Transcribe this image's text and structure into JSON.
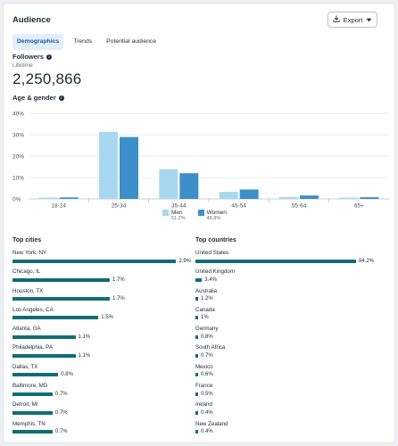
{
  "header": {
    "title": "Audience",
    "export_label": "Export"
  },
  "tabs": [
    {
      "label": "Demographics",
      "active": true
    },
    {
      "label": "Trends",
      "active": false
    },
    {
      "label": "Potential audience",
      "active": false
    }
  ],
  "followers": {
    "label": "Followers",
    "period": "Lifetime",
    "count": "2,250,866"
  },
  "age_gender": {
    "label": "Age & gender"
  },
  "chart_data": {
    "type": "bar",
    "categories": [
      "18-24",
      "25-34",
      "35-44",
      "45-54",
      "55-64",
      "65+"
    ],
    "series": [
      {
        "name": "Men",
        "values": [
          0.6,
          31.3,
          13.9,
          3.3,
          0.8,
          0.6
        ],
        "color": "#a8d8f0"
      },
      {
        "name": "Women",
        "values": [
          0.7,
          28.9,
          12.0,
          4.4,
          1.6,
          0.8
        ],
        "color": "#3d8fc9"
      }
    ],
    "yticks": [
      "0%",
      "10%",
      "20%",
      "30%",
      "40%"
    ],
    "ylim": [
      0,
      40
    ],
    "legend_placement": "bottom-center",
    "grid": true
  },
  "legend": [
    {
      "name": "Men",
      "pct": "51.2%",
      "color": "#a8d8f0"
    },
    {
      "name": "Women",
      "pct": "48.8%",
      "color": "#3d8fc9"
    }
  ],
  "top_cities": {
    "title": "Top cities",
    "items": [
      {
        "name": "New York, NY",
        "value": "2.9%",
        "pct": 2.9
      },
      {
        "name": "Chicago, IL",
        "value": "1.7%",
        "pct": 1.7
      },
      {
        "name": "Houston, TX",
        "value": "1.7%",
        "pct": 1.7
      },
      {
        "name": "Los Angeles, CA",
        "value": "1.5%",
        "pct": 1.5
      },
      {
        "name": "Atlanta, GA",
        "value": "1.1%",
        "pct": 1.1
      },
      {
        "name": "Philadelphia, PA",
        "value": "1.1%",
        "pct": 1.1
      },
      {
        "name": "Dallas, TX",
        "value": "0.8%",
        "pct": 0.8
      },
      {
        "name": "Baltimore, MD",
        "value": "0.7%",
        "pct": 0.7
      },
      {
        "name": "Detroit, MI",
        "value": "0.7%",
        "pct": 0.7
      },
      {
        "name": "Memphis, TN",
        "value": "0.7%",
        "pct": 0.7
      }
    ]
  },
  "top_countries": {
    "title": "Top countries",
    "items": [
      {
        "name": "United States",
        "value": "84.2%",
        "pct": 84.2
      },
      {
        "name": "United Kingdom",
        "value": "3.4%",
        "pct": 3.4
      },
      {
        "name": "Australia",
        "value": "1.2%",
        "pct": 1.2
      },
      {
        "name": "Canada",
        "value": "1%",
        "pct": 1.0
      },
      {
        "name": "Germany",
        "value": "0.8%",
        "pct": 0.8
      },
      {
        "name": "South Africa",
        "value": "0.7%",
        "pct": 0.7
      },
      {
        "name": "Mexico",
        "value": "0.6%",
        "pct": 0.6
      },
      {
        "name": "France",
        "value": "0.5%",
        "pct": 0.5
      },
      {
        "name": "Ireland",
        "value": "0.4%",
        "pct": 0.4
      },
      {
        "name": "New Zealand",
        "value": "0.4%",
        "pct": 0.4
      }
    ]
  }
}
